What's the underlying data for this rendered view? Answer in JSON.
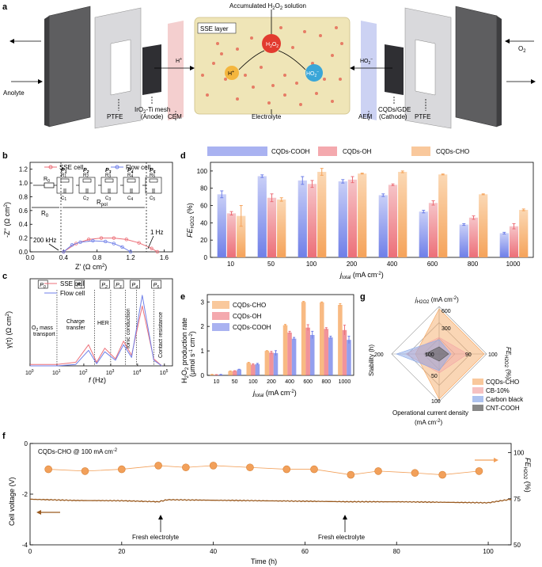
{
  "panel_labels": [
    "a",
    "b",
    "c",
    "d",
    "e",
    "f",
    "g"
  ],
  "colors": {
    "cooh": "#6f7fe8",
    "oh": "#ec6f78",
    "cho": "#f5a35a",
    "carbon": "#8aa8e8",
    "cnt": "#555555",
    "cb": "#f2a6a6",
    "line_orange": "#f2a05a",
    "line_brown": "#9a5a1f",
    "bar_cooh_top": "#c9cff7",
    "bar_oh_top": "#f6c4c8",
    "bar_cho_top": "#fbd8b4"
  },
  "panel_a": {
    "labels": {
      "anolyte": "Anolyte",
      "o2": "O",
      "o2_sub": "2",
      "accumulated": "Accumulated H",
      "accumulated_sub": "2",
      "accumulated_o": "O",
      "accumulated_sub2": "2",
      "accumulated_rest": " solution",
      "sse_layer": "SSE layer",
      "h2o2": "H",
      "hplus": "H",
      "ho2": "HO",
      "ptfe_left": "PTFE",
      "irtimesh": "IrO",
      "irtimesh_rest": "-Ti mesh",
      "anode": "(Anode)",
      "cem": "CEM",
      "electrolyte": "Electrolyte",
      "aem": "AEM",
      "cqds_gde": "CQDs/GDE",
      "cathode": "(Cathode)",
      "ptfe_right": "PTFE",
      "hplus_left": "H",
      "ho2_right": "HO"
    }
  },
  "panel_b": {
    "legend": [
      "SSE cell",
      "Flow cell"
    ],
    "ylabel": "-Z'' (Ω cm",
    "ylabel_sup": "2",
    "ylabel_end": ")",
    "xlabel": "Z' (Ω cm",
    "xlabel_sup": "2",
    "xlabel_end": ")",
    "x_ticks": [
      "0.0",
      "0.4",
      "0.8",
      "1.2",
      "1.6"
    ],
    "y_ticks": [
      "0.0",
      "0.2",
      "0.4",
      "0.6",
      "0.8",
      "1.0",
      "1.2"
    ],
    "r0": "R",
    "r0_sub": "0",
    "rpol": "R",
    "rpol_sub": "pol",
    "freq_high": "200 kHz",
    "freq_low": "1 Hz",
    "circuit_P": [
      "P",
      "P",
      "P",
      "P",
      "P"
    ],
    "circuit_P_sub": [
      "1",
      "2",
      "3",
      "4",
      "5"
    ],
    "circuit_R": [
      "R",
      "R",
      "R",
      "R",
      "R"
    ],
    "circuit_R_sub": [
      "1",
      "2",
      "3",
      "4",
      "5"
    ],
    "circuit_C": [
      "C",
      "C",
      "C",
      "C",
      "C"
    ],
    "circuit_C_sub": [
      "1",
      "2",
      "3",
      "4",
      "5"
    ],
    "circuit_R0": "R",
    "circuit_R0_sub": "0"
  },
  "panel_c": {
    "legend": [
      "SSE cell",
      "Flow cell"
    ],
    "ylabel": "γ(τ) (Ω cm",
    "ylabel_sup": "2",
    "ylabel_end": ")",
    "xlabel_f": "f",
    "xlabel_rest": " (Hz)",
    "x_ticks": [
      "10",
      "10",
      "10",
      "10",
      "10"
    ],
    "x_tick_exp": [
      "0",
      "1",
      "2",
      "3",
      "4",
      "5"
    ],
    "x_tick_exp_more": [
      "4",
      "5"
    ],
    "x_tick_base0": "10",
    "peaks": [
      "P",
      "P",
      "P",
      "P",
      "P",
      "P"
    ],
    "peak_sub": [
      "0",
      "1",
      "2",
      "3",
      "4",
      "5"
    ],
    "annotations": [
      "O",
      "transport",
      "Charge",
      "transfer",
      "HER",
      "Ionic conduction",
      "Contact resistance"
    ],
    "o2_mass": "O",
    "o2_mass_sub": "2",
    "o2_mass_rest": " mass"
  },
  "panel_d": {
    "legend": [
      "CQDs-COOH",
      "CQDs-OH",
      "CQDs-CHO"
    ],
    "ylabel_fe": "FE",
    "ylabel_sub": "H2O2",
    "ylabel_rest": " (%)",
    "xlabel_j": "j",
    "xlabel_sub": "total",
    "xlabel_rest": " (mA cm",
    "xlabel_sup": "-2",
    "xlabel_end": ")",
    "y_ticks": [
      "0",
      "20",
      "40",
      "60",
      "80",
      "100"
    ]
  },
  "panel_e": {
    "legend": [
      "CQDs-CHO",
      "CQDs-OH",
      "CQDs-COOH"
    ],
    "ylabel": "H",
    "ylabel_sub": "2",
    "ylabel_mid": "O",
    "ylabel_sub2": "2",
    "ylabel_rest": " production rate",
    "ylabel_unit": "(μmol s",
    "ylabel_unit_sup": "-1",
    "ylabel_unit_mid": " cm",
    "ylabel_unit_sup2": "-2",
    "ylabel_unit_end": ")",
    "xlabel_j": "j",
    "xlabel_sub": "total",
    "xlabel_rest": " (mA cm",
    "xlabel_sup": "-2",
    "xlabel_end": ")",
    "y_ticks": [
      "0",
      "1",
      "2",
      "3"
    ]
  },
  "panel_g": {
    "axes": [
      "j",
      "FE",
      "Operational current density",
      "Stability (h)"
    ],
    "axis_j_sub": "H2O2",
    "axis_j_rest": " (mA cm",
    "axis_j_sup": "-2",
    "axis_j_end": ")",
    "axis_fe_sub": "H2O2",
    "axis_fe_rest": " (%)",
    "op_unit": "(mA cm",
    "op_unit_sup": "-2",
    "op_unit_end": ")",
    "tick_labels": [
      "600",
      "300",
      "100",
      "90",
      "100",
      "50",
      "100",
      "200"
    ],
    "legend": [
      "CQDs-CHO",
      "CB-10%",
      "Carbon black",
      "CNT-COOH"
    ]
  },
  "panel_f": {
    "condition": "CQDs-CHO @ 100 mA cm",
    "condition_sup": "-2",
    "ylabel_left": "Cell voltage (V)",
    "ylabel_right": "FE",
    "ylabel_right_sub": "H2O2",
    "ylabel_right_rest": " (%)",
    "xlabel": "Time (h)",
    "x_ticks": [
      "0",
      "20",
      "40",
      "60",
      "80",
      "100"
    ],
    "y_ticks_left": [
      "0",
      "-2",
      "-4"
    ],
    "y_ticks_right": [
      "100",
      "75",
      "50"
    ],
    "annotations": [
      "Fresh electrolyte",
      "Fresh electrolyte"
    ]
  },
  "chart_data": [
    {
      "type": "bar",
      "id": "d",
      "title": "",
      "xlabel": "j_total (mA cm^-2)",
      "ylabel": "FE_H2O2 (%)",
      "categories": [
        "10",
        "50",
        "100",
        "200",
        "400",
        "600",
        "800",
        "1000"
      ],
      "ylim": [
        0,
        110
      ],
      "series": [
        {
          "name": "CQDs-COOH",
          "values": [
            73,
            94,
            89,
            88,
            72,
            53,
            38,
            28
          ],
          "errors": [
            4,
            1.5,
            4.5,
            2,
            1.5,
            1.5,
            1,
            1
          ]
        },
        {
          "name": "CQDs-OH",
          "values": [
            51,
            69,
            85,
            90,
            84,
            63,
            46,
            36
          ],
          "errors": [
            2,
            4.5,
            4,
            3.5,
            1,
            2.5,
            2,
            3
          ]
        },
        {
          "name": "CQDs-CHO",
          "values": [
            48,
            67,
            99,
            97,
            99,
            96,
            73,
            55
          ],
          "errors": [
            12,
            2,
            4,
            0.5,
            1,
            0.5,
            0.5,
            1
          ]
        }
      ]
    },
    {
      "type": "bar",
      "id": "e",
      "title": "",
      "xlabel": "j_total (mA cm^-2)",
      "ylabel": "H2O2 production rate (umol s^-1 cm^-2)",
      "categories": [
        "10",
        "50",
        "100",
        "200",
        "400",
        "600",
        "800",
        "1000"
      ],
      "ylim": [
        0,
        3.3
      ],
      "series": [
        {
          "name": "CQDs-CHO",
          "values": [
            0.03,
            0.17,
            0.51,
            1.0,
            2.05,
            3.0,
            2.98,
            2.88
          ],
          "errors": [
            0.01,
            0.01,
            0.02,
            0.01,
            0.03,
            0.02,
            0.02,
            0.05
          ]
        },
        {
          "name": "CQDs-OH",
          "values": [
            0.02,
            0.18,
            0.44,
            0.93,
            1.75,
            1.95,
            1.9,
            1.85
          ],
          "errors": [
            0.01,
            0.01,
            0.03,
            0.05,
            0.05,
            0.12,
            0.05,
            0.2
          ]
        },
        {
          "name": "CQDs-COOH",
          "values": [
            0.03,
            0.24,
            0.46,
            0.91,
            1.5,
            1.65,
            1.55,
            1.45
          ],
          "errors": [
            0.01,
            0.01,
            0.03,
            0.1,
            0.05,
            0.15,
            0.05,
            0.15
          ]
        }
      ]
    },
    {
      "type": "line",
      "id": "b",
      "title": "",
      "xlabel": "Z' (Ohm cm^2)",
      "ylabel": "-Z'' (Ohm cm^2)",
      "xlim": [
        0,
        1.7
      ],
      "ylim": [
        0,
        1.3
      ],
      "series": [
        {
          "name": "SSE cell",
          "x": [
            0.4,
            0.55,
            0.7,
            0.85,
            1.0,
            1.15,
            1.3,
            1.45,
            1.52
          ],
          "y": [
            0.0,
            0.12,
            0.18,
            0.2,
            0.2,
            0.18,
            0.13,
            0.05,
            0.0
          ]
        },
        {
          "name": "Flow cell",
          "x": [
            0.4,
            0.5,
            0.6,
            0.75,
            0.9,
            1.0,
            1.1,
            1.2
          ],
          "y": [
            0.0,
            0.1,
            0.14,
            0.16,
            0.15,
            0.12,
            0.07,
            0.0
          ]
        }
      ]
    },
    {
      "type": "line",
      "id": "c",
      "title": "",
      "xlabel": "f (Hz)",
      "ylabel": "gamma(tau) (Ohm cm^2)",
      "xscale": "log",
      "xlim": [
        1,
        100000
      ],
      "series": [
        {
          "name": "SSE cell",
          "x": [
            1,
            10,
            50,
            150,
            300,
            600,
            1500,
            3000,
            6000,
            15000,
            40000,
            80000
          ],
          "y": [
            0.02,
            0.02,
            0.05,
            0.3,
            0.05,
            0.25,
            0.1,
            0.35,
            0.15,
            0.85,
            0.1,
            0.0
          ]
        },
        {
          "name": "Flow cell",
          "x": [
            1,
            10,
            50,
            150,
            300,
            600,
            1500,
            3000,
            6000,
            15000,
            40000,
            80000
          ],
          "y": [
            0.0,
            0.0,
            0.02,
            0.22,
            0.03,
            0.2,
            0.08,
            0.3,
            0.12,
            1.0,
            0.08,
            0.0
          ]
        }
      ]
    },
    {
      "type": "line",
      "id": "f",
      "title": "",
      "xlabel": "Time (h)",
      "ylabel": "Cell voltage (V) / FE_H2O2 (%)",
      "xlim": [
        0,
        105
      ],
      "series": [
        {
          "name": "Cell voltage (V)",
          "x": [
            0,
            10,
            20,
            28,
            30,
            40,
            50,
            60,
            70,
            80,
            90,
            100,
            105
          ],
          "y": [
            -2.2,
            -2.25,
            -2.26,
            -2.3,
            -2.22,
            -2.24,
            -2.26,
            -2.28,
            -2.3,
            -2.3,
            -2.32,
            -2.34,
            -2.2
          ]
        },
        {
          "name": "FE_H2O2 (%)",
          "x": [
            4,
            12,
            20,
            28,
            34,
            40,
            48,
            56,
            62,
            70,
            76,
            84,
            90,
            98
          ],
          "y": [
            91,
            90,
            91,
            93,
            92,
            93,
            92,
            91,
            91,
            88,
            90,
            89,
            88,
            90
          ]
        }
      ]
    },
    {
      "type": "radar",
      "id": "g",
      "title": "",
      "axes": [
        "j_H2O2 (mA cm^-2)",
        "FE_H2O2 (%)",
        "Operational current density (mA cm^-2)",
        "Stability (h)"
      ],
      "series": [
        {
          "name": "CQDs-CHO",
          "values": [
            0.95,
            0.95,
            0.95,
            0.5
          ]
        },
        {
          "name": "CB-10%",
          "values": [
            0.35,
            0.6,
            0.4,
            0.7
          ]
        },
        {
          "name": "Carbon black",
          "values": [
            0.3,
            0.25,
            0.35,
            0.9
          ]
        },
        {
          "name": "CNT-COOH",
          "values": [
            0.15,
            0.2,
            0.15,
            0.3
          ]
        }
      ]
    }
  ]
}
